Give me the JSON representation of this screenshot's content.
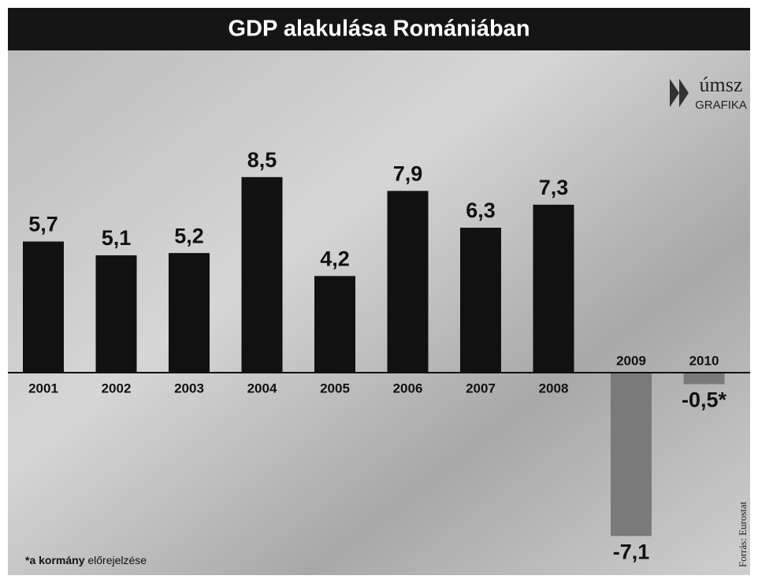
{
  "chart_data": {
    "type": "bar",
    "title": "GDP alakulása Romániában",
    "categories": [
      "2001",
      "2002",
      "2003",
      "2004",
      "2005",
      "2006",
      "2007",
      "2008",
      "2009",
      "2010"
    ],
    "values": [
      5.7,
      5.1,
      5.2,
      8.5,
      4.2,
      7.9,
      6.3,
      7.3,
      -7.1,
      -0.5
    ],
    "value_labels": [
      "5,7",
      "5,1",
      "5,2",
      "8,5",
      "4,2",
      "7,9",
      "6,3",
      "7,3",
      "-7,1",
      "-0,5*"
    ],
    "color": "#111111",
    "negative_color": "#7a7a7a",
    "logo": {
      "name": "úmsz",
      "subtitle": "GRAFIKA"
    },
    "footnote": {
      "bold": "*a kormány",
      "text": "előrejelzése"
    },
    "source": "Forrás: Eurostat"
  }
}
